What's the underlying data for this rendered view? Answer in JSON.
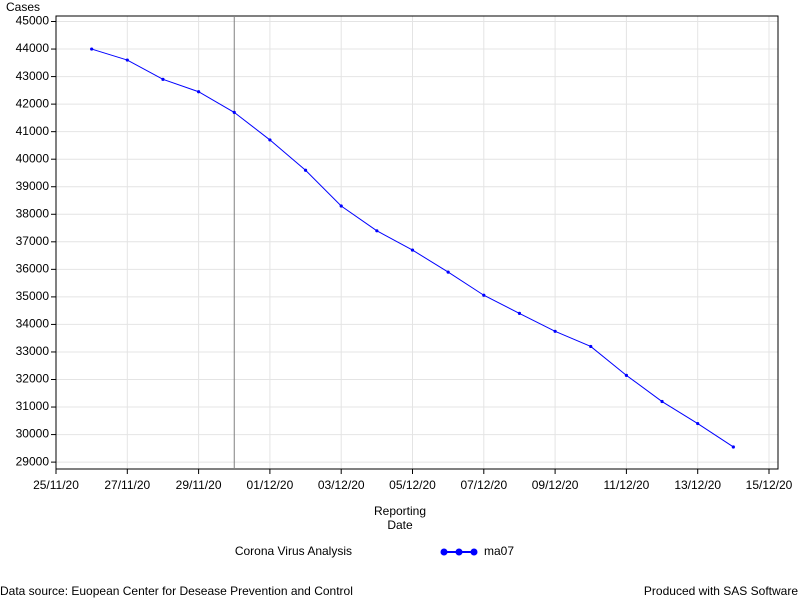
{
  "chart_data": {
    "type": "line",
    "y_label": "Cases",
    "x_label": "Reporting Date",
    "legend_title": "Corona Virus Analysis",
    "footnote_left": "Data source: Euopean Center for Desease Prevention and Control",
    "footnote_right": "Produced with SAS Software",
    "x": [
      "2020-11-26",
      "2020-11-27",
      "2020-11-28",
      "2020-11-29",
      "2020-11-30",
      "2020-12-01",
      "2020-12-02",
      "2020-12-03",
      "2020-12-04",
      "2020-12-05",
      "2020-12-06",
      "2020-12-07",
      "2020-12-08",
      "2020-12-09",
      "2020-12-10",
      "2020-12-11",
      "2020-12-12",
      "2020-12-13",
      "2020-12-14"
    ],
    "series": [
      {
        "name": "ma07",
        "color": "#0000ff",
        "values": [
          44000,
          43600,
          42900,
          42450,
          41700,
          40700,
          39600,
          38300,
          37400,
          36700,
          35900,
          35060,
          34400,
          33750,
          33200,
          32150,
          31200,
          30400,
          29550
        ]
      }
    ],
    "xlim": [
      "2020-11-25",
      "2020-12-15"
    ],
    "xticks": [
      {
        "value": "2020-11-25",
        "label": "25/11/20"
      },
      {
        "value": "2020-11-27",
        "label": "27/11/20"
      },
      {
        "value": "2020-11-29",
        "label": "29/11/20"
      },
      {
        "value": "2020-12-01",
        "label": "01/12/20"
      },
      {
        "value": "2020-12-03",
        "label": "03/12/20"
      },
      {
        "value": "2020-12-05",
        "label": "05/12/20"
      },
      {
        "value": "2020-12-07",
        "label": "07/12/20"
      },
      {
        "value": "2020-12-09",
        "label": "09/12/20"
      },
      {
        "value": "2020-12-11",
        "label": "11/12/20"
      },
      {
        "value": "2020-12-13",
        "label": "13/12/20"
      },
      {
        "value": "2020-12-15",
        "label": "15/12/20"
      }
    ],
    "ylim": [
      28750,
      45200
    ],
    "yticks": [
      29000,
      30000,
      31000,
      32000,
      33000,
      34000,
      35000,
      36000,
      37000,
      38000,
      39000,
      40000,
      41000,
      42000,
      43000,
      44000,
      45000
    ],
    "reference_x": "2020-11-30",
    "grid": true
  }
}
